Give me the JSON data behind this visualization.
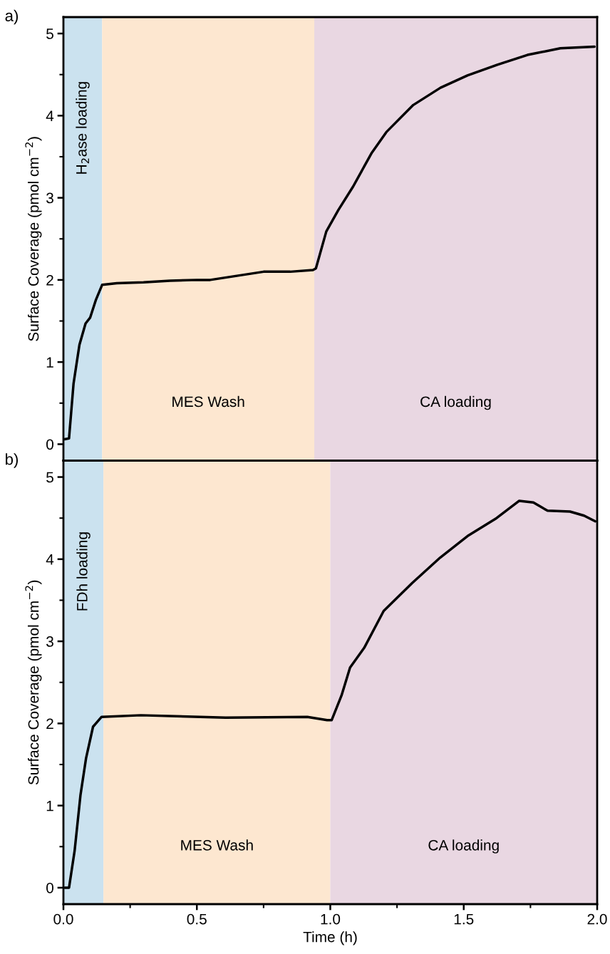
{
  "chart_data": [
    {
      "type": "line",
      "ylabel": "Surface Coverage (pmol cm$^{−2}$)",
      "annotations": [
        "a)"
      ],
      "tick_labels": "y",
      "xlim": [
        0,
        2
      ],
      "ylim": [
        -0.2,
        5.2
      ],
      "yticks": [
        0,
        {
          "value": 0.5,
          "label": null
        },
        1,
        {
          "value": 1.5,
          "label": null
        },
        2,
        {
          "value": 2.5,
          "label": null
        },
        3,
        {
          "value": 3.5,
          "label": null
        },
        4,
        {
          "value": 4.5,
          "label": null
        },
        5
      ],
      "bands": [
        {
          "axis": "x",
          "from": 0,
          "to": 0.145,
          "label": "H$_{2}$ase loading",
          "color": "#cbe2ef"
        },
        {
          "axis": "x",
          "from": 0.145,
          "to": 0.94,
          "label": "MES Wash",
          "color": "#fde7d0"
        },
        {
          "axis": "x",
          "from": 0.94,
          "to": 2,
          "label": "CA loading",
          "color": "#e9d7e2"
        }
      ],
      "series": [
        {
          "color": "#000000",
          "x": [
            0.004,
            0.021,
            0.038,
            0.06,
            0.083,
            0.1,
            0.122,
            0.145,
            0.2,
            0.3,
            0.4,
            0.5,
            0.55,
            0.65,
            0.75,
            0.85,
            0.935,
            0.946,
            0.985,
            1.03,
            1.086,
            1.154,
            1.21,
            1.311,
            1.413,
            1.514,
            1.626,
            1.739,
            1.862,
            1.99
          ],
          "values": [
            0.06,
            0.07,
            0.74,
            1.21,
            1.47,
            1.54,
            1.76,
            1.94,
            1.96,
            1.97,
            1.99,
            2.0,
            2.0,
            2.05,
            2.1,
            2.1,
            2.12,
            2.14,
            2.59,
            2.85,
            3.14,
            3.54,
            3.8,
            4.13,
            4.34,
            4.49,
            4.62,
            4.74,
            4.82,
            4.84
          ]
        }
      ]
    },
    {
      "type": "line",
      "xlabel": "Time (h)",
      "ylabel": "Surface Coverage (pmol cm$^{−2}$)",
      "annotations": [
        "b)"
      ],
      "xlim": [
        0,
        2
      ],
      "ylim": [
        -0.2,
        5.2
      ],
      "xticks": [
        {
          "value": 0,
          "label": "0.0"
        },
        {
          "value": 0.25,
          "label": null
        },
        0.5,
        {
          "value": 0.75,
          "label": null
        },
        {
          "value": 1,
          "label": "1.0"
        },
        {
          "value": 1.25,
          "label": null
        },
        1.5,
        {
          "value": 1.75,
          "label": null
        },
        {
          "value": 2,
          "label": "2.0"
        }
      ],
      "yticks": [
        0,
        {
          "value": 0.5,
          "label": null
        },
        1,
        {
          "value": 1.5,
          "label": null
        },
        2,
        {
          "value": 2.5,
          "label": null
        },
        3,
        {
          "value": 3.5,
          "label": null
        },
        4,
        {
          "value": 4.5,
          "label": null
        },
        5
      ],
      "bands": [
        {
          "axis": "x",
          "from": 0,
          "to": 0.15,
          "label": "FDh loading",
          "color": "#cbe2ef"
        },
        {
          "axis": "x",
          "from": 0.15,
          "to": 1.0,
          "label": "MES Wash",
          "color": "#fde7d0"
        },
        {
          "axis": "x",
          "from": 1.0,
          "to": 2,
          "label": "CA loading",
          "color": "#e9d7e2"
        }
      ],
      "series": [
        {
          "color": "#000000",
          "x": [
            0.005,
            0.021,
            0.042,
            0.064,
            0.085,
            0.111,
            0.143,
            0.29,
            0.608,
            0.914,
            0.988,
            1.005,
            1.042,
            1.074,
            1.127,
            1.2,
            1.307,
            1.412,
            1.518,
            1.623,
            1.708,
            1.761,
            1.814,
            1.898,
            1.951,
            1.993
          ],
          "values": [
            0.0,
            0.0,
            0.45,
            1.13,
            1.58,
            1.96,
            2.08,
            2.1,
            2.07,
            2.08,
            2.04,
            2.04,
            2.34,
            2.68,
            2.92,
            3.37,
            3.71,
            4.02,
            4.29,
            4.5,
            4.71,
            4.69,
            4.59,
            4.58,
            4.53,
            4.46
          ]
        }
      ]
    }
  ]
}
